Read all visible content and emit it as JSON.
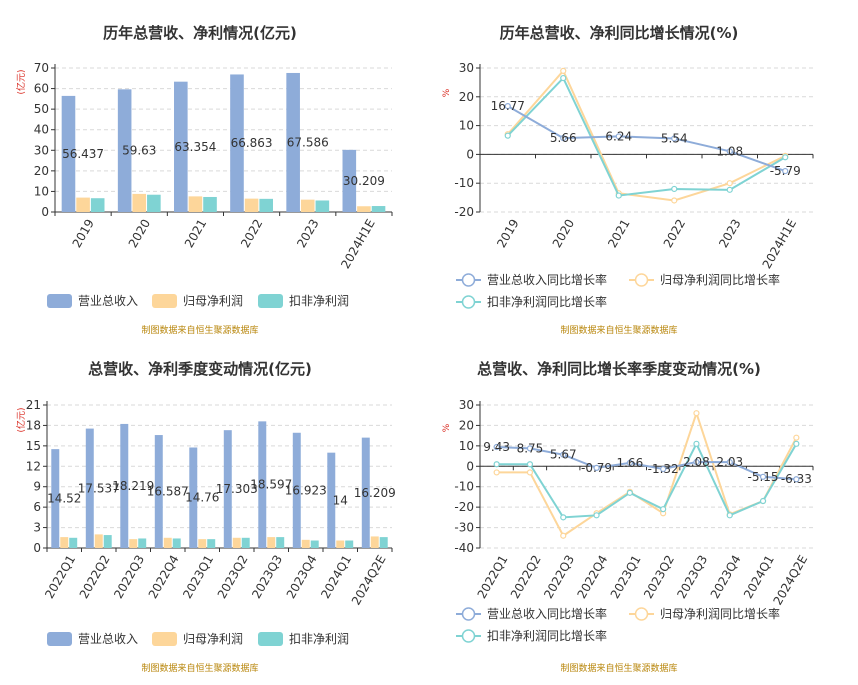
{
  "colors": {
    "revenue": "#8eacd9",
    "net_profit": "#fdd69a",
    "deducted_profit": "#7fd3d3",
    "unit_text": "#d9261c",
    "source_text": "#b8860b"
  },
  "source_note": "制图数据来自恒生聚源数据库",
  "chart_data": [
    {
      "type": "bar",
      "title": "历年总营收、净利情况(亿元)",
      "unit": "(亿元)",
      "categories": [
        "2019",
        "2020",
        "2021",
        "2022",
        "2023",
        "2024H1E"
      ],
      "ylim": [
        0,
        70
      ],
      "yticks": [
        0,
        10,
        20,
        30,
        40,
        50,
        60,
        70
      ],
      "grid": true,
      "legend_position": "bottom",
      "series": [
        {
          "name": "营业总收入",
          "values": [
            56.437,
            59.63,
            63.354,
            66.863,
            67.586,
            30.209
          ],
          "labels": [
            "56.437",
            "59.63",
            "63.354",
            "66.863",
            "67.586",
            "30.209"
          ]
        },
        {
          "name": "归母净利润",
          "values": [
            7.0,
            8.8,
            7.6,
            6.5,
            6.0,
            2.8
          ]
        },
        {
          "name": "扣非净利润",
          "values": [
            6.7,
            8.4,
            7.3,
            6.4,
            5.6,
            2.9
          ]
        }
      ]
    },
    {
      "type": "line",
      "title": "历年总营收、净利同比增长情况(%)",
      "unit": "%",
      "categories": [
        "2019",
        "2020",
        "2021",
        "2022",
        "2023",
        "2024H1E"
      ],
      "ylim": [
        -20,
        30
      ],
      "yticks": [
        -20,
        -10,
        0,
        10,
        20,
        30
      ],
      "grid": true,
      "legend_position": "bottom",
      "series": [
        {
          "name": "营业总收入同比增长率",
          "values": [
            16.77,
            5.66,
            6.24,
            5.54,
            1.08,
            -5.79
          ],
          "labels": [
            "16.77",
            "5.66",
            "6.24",
            "5.54",
            "1.08",
            "-5.79"
          ]
        },
        {
          "name": "归母净利润同比增长率",
          "values": [
            7.0,
            29.0,
            -13.5,
            -16.0,
            -10.0,
            -0.5
          ]
        },
        {
          "name": "扣非净利润同比增长率",
          "values": [
            6.5,
            26.5,
            -14.3,
            -12.0,
            -12.3,
            -1.0
          ]
        }
      ]
    },
    {
      "type": "bar",
      "title": "总营收、净利季度变动情况(亿元)",
      "unit": "(亿元)",
      "categories": [
        "2022Q1",
        "2022Q2",
        "2022Q3",
        "2022Q4",
        "2023Q1",
        "2023Q2",
        "2023Q3",
        "2023Q4",
        "2024Q1",
        "2024Q2E"
      ],
      "ylim": [
        0,
        21
      ],
      "yticks": [
        0,
        3,
        6,
        9,
        12,
        15,
        18,
        21
      ],
      "grid": true,
      "legend_position": "bottom",
      "series": [
        {
          "name": "营业总收入",
          "values": [
            14.52,
            17.537,
            18.219,
            16.587,
            14.76,
            17.303,
            18.597,
            16.923,
            14,
            16.209
          ],
          "labels": [
            "14.52",
            "17.537",
            "18.219",
            "16.587",
            "14.76",
            "17.303",
            "18.597",
            "16.923",
            "14",
            "16.209"
          ]
        },
        {
          "name": "归母净利润",
          "values": [
            1.6,
            2.0,
            1.3,
            1.5,
            1.3,
            1.5,
            1.6,
            1.2,
            1.1,
            1.7
          ]
        },
        {
          "name": "扣非净利润",
          "values": [
            1.5,
            1.9,
            1.4,
            1.4,
            1.3,
            1.5,
            1.6,
            1.1,
            1.1,
            1.6
          ]
        }
      ]
    },
    {
      "type": "line",
      "title": "总营收、净利同比增长率季度变动情况(%)",
      "unit": "%",
      "categories": [
        "2022Q1",
        "2022Q2",
        "2022Q3",
        "2022Q4",
        "2023Q1",
        "2023Q2",
        "2023Q3",
        "2023Q4",
        "2024Q1",
        "2024Q2E"
      ],
      "ylim": [
        -40,
        30
      ],
      "yticks": [
        -40,
        -30,
        -20,
        -10,
        0,
        10,
        20,
        30
      ],
      "grid": true,
      "legend_position": "bottom",
      "series": [
        {
          "name": "营业总收入同比增长率",
          "values": [
            9.43,
            8.75,
            5.67,
            -0.79,
            1.66,
            -1.32,
            2.08,
            2.03,
            -5.15,
            -6.33
          ],
          "labels": [
            "9.43",
            "8.75",
            "5.67",
            "-0.79",
            "1.66",
            "-1.32",
            "2.08",
            "2.03",
            "-5.15",
            "-6.33"
          ]
        },
        {
          "name": "归母净利润同比增长率",
          "values": [
            -3.0,
            -3.0,
            -34.0,
            -23.0,
            -12.5,
            -23.0,
            26.0,
            -23.5,
            -17.0,
            14.0
          ]
        },
        {
          "name": "扣非净利润同比增长率",
          "values": [
            1.0,
            1.0,
            -25.0,
            -24.0,
            -13.0,
            -21.0,
            11.0,
            -24.0,
            -17.0,
            11.0
          ]
        }
      ]
    }
  ]
}
